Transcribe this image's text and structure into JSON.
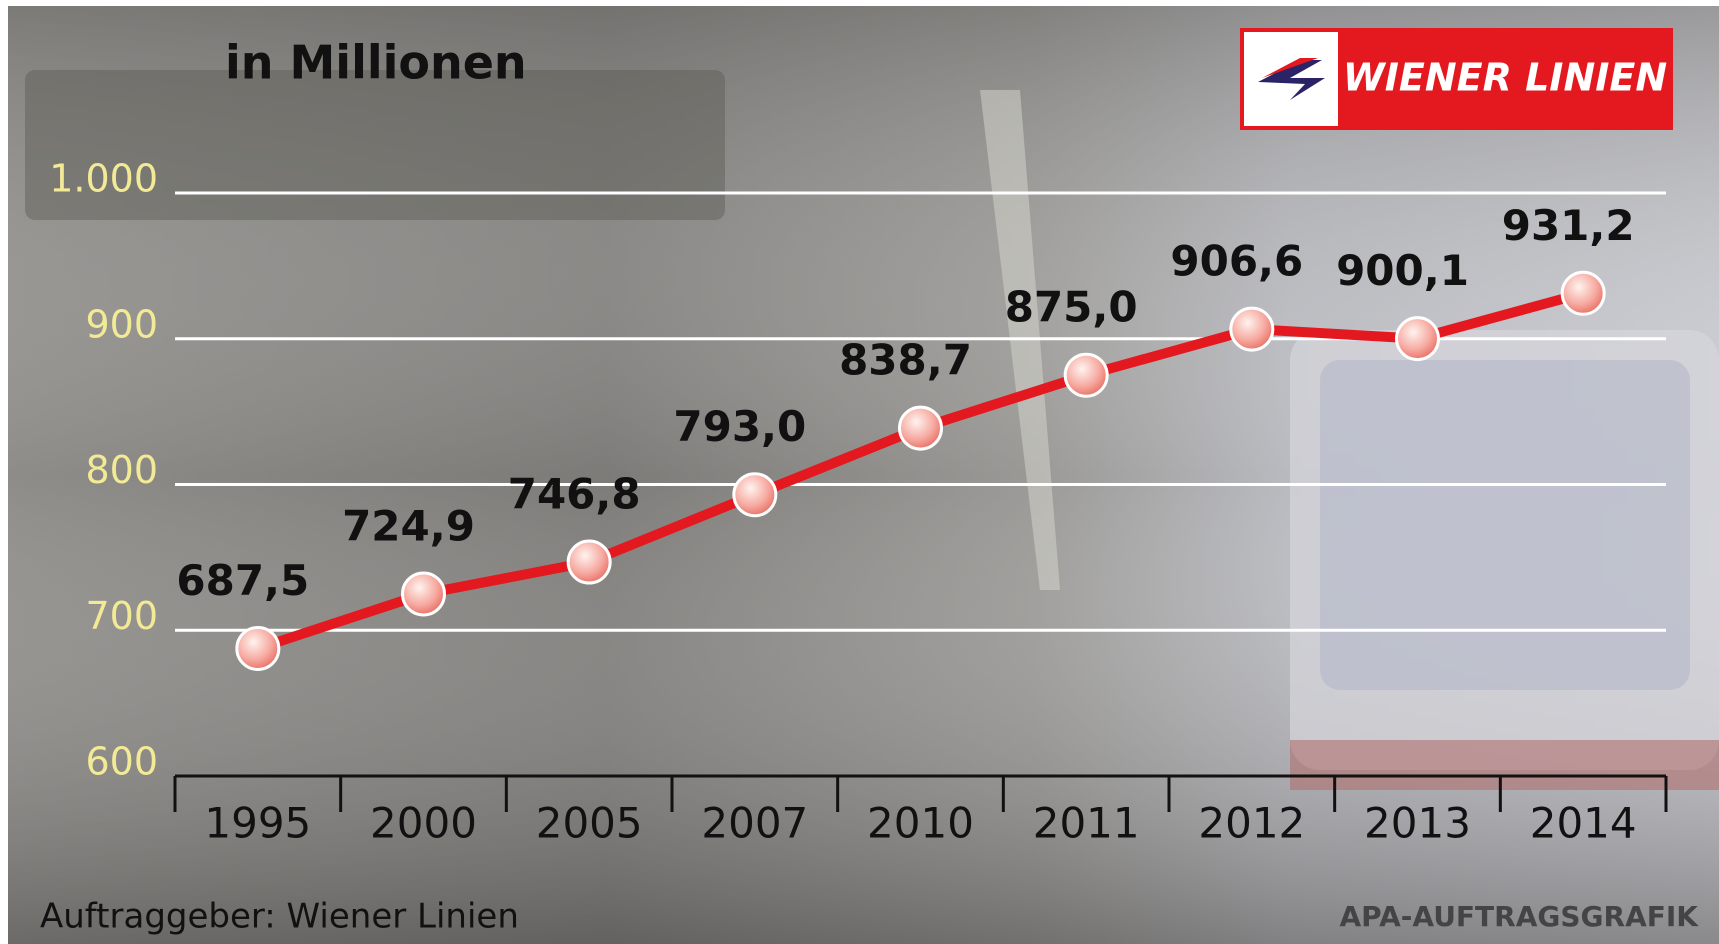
{
  "chart_data": {
    "type": "line",
    "title": "in Millionen",
    "logo": "WIENER LINIEN",
    "source": "Auftraggeber: Wiener Linien",
    "credit": "APA-AUFTRAGSGRAFIK",
    "categories": [
      "1995",
      "2000",
      "2005",
      "2007",
      "2010",
      "2011",
      "2012",
      "2013",
      "2014"
    ],
    "series": [
      {
        "color": "#e3191f",
        "values": [
          687.5,
          724.9,
          746.8,
          793.0,
          838.7,
          875.0,
          906.6,
          900.1,
          931.2
        ],
        "value_labels": [
          "687,5",
          "724,9",
          "746,8",
          "793,0",
          "838,7",
          "875,0",
          "906,6",
          "900,1",
          "931,2"
        ]
      }
    ],
    "ylim": [
      600,
      1000
    ],
    "yticks": [
      600,
      700,
      800,
      900,
      {
        "value": 1000,
        "label": "1.000"
      }
    ],
    "grid": true
  }
}
